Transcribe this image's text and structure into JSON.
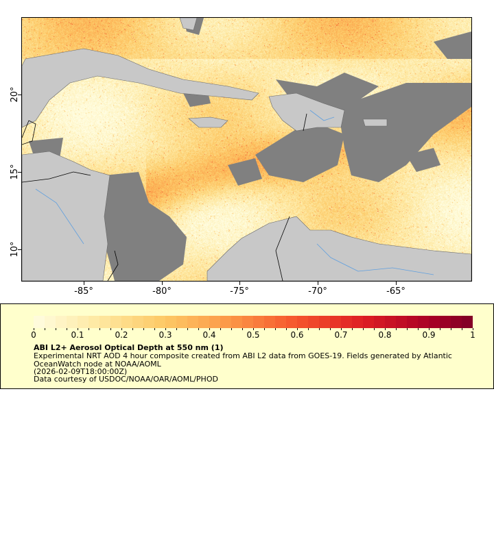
{
  "map": {
    "lon_ticks": [
      "-85°",
      "-80°",
      "-75°",
      "-70°",
      "-65°"
    ],
    "lat_ticks": [
      "20°",
      "15°",
      "10°"
    ],
    "extent": {
      "lon": [
        -89,
        -60.1
      ],
      "lat": [
        7.9,
        25
      ]
    },
    "land_color": "#c8c8c8",
    "nodata_color": "#808080",
    "border_color": "#000000",
    "river_color": "#5f9fdf"
  },
  "legend": {
    "colorbar_ticks": [
      "0",
      "0.1",
      "0.2",
      "0.3",
      "0.4",
      "0.5",
      "0.6",
      "0.7",
      "0.8",
      "0.9",
      "1"
    ],
    "colorbar_range": [
      0,
      1
    ],
    "colormap_start": "#fffde0",
    "colormap_end": "#7f0026",
    "title": "ABI L2+ Aerosol Optical Depth at 550 nm (1)",
    "description": "Experimental NRT AOD 4 hour composite created from ABI L2 data from GOES-19. Fields generated by Atlantic OceanWatch node at NOAA/AOML",
    "time": "(2026-02-09T18:00:00Z)",
    "credit": "Data courtesy of USDOC/NOAA/OAR/AOML/PHOD",
    "background": "#ffffcc"
  }
}
